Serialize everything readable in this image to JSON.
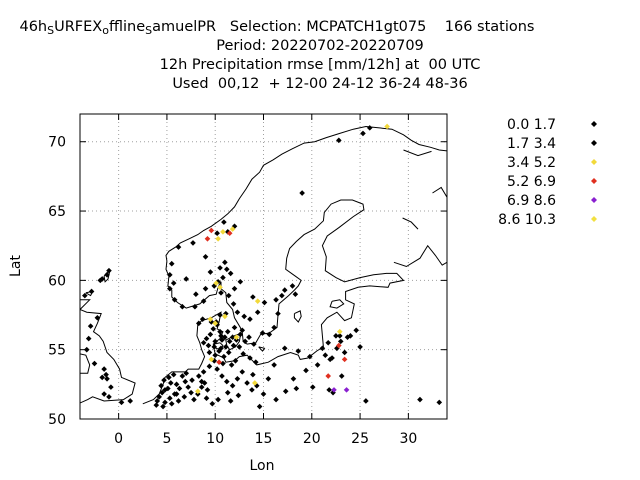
{
  "header": {
    "line1": "46h SURFEX offline SamuelPR   Selection: MCPATCH1gt075    166 stations",
    "line1_parts": {
      "pre": "46h",
      "s1": "S",
      "mid1": "URFEX",
      "s2": "o",
      "mid2": "ffline",
      "s3": "S",
      "mid3": "amuelPR   Selection: MCPATCH1gt075    166 stations"
    },
    "line2": "Period: 20220702-20220709",
    "line3": "12h Precipitation rmse [mm/12h] at  00 UTC",
    "line4": "Used  00,12  + 12-00 24-12 36-24 48-36"
  },
  "chart_data": {
    "type": "scatter",
    "xlabel": "Lon",
    "ylabel": "Lat",
    "xlim": [
      -4,
      34
    ],
    "ylim": [
      50,
      72
    ],
    "xticks": [
      0,
      5,
      10,
      15,
      20,
      25,
      30
    ],
    "yticks": [
      50,
      55,
      60,
      65,
      70
    ],
    "grid": true,
    "legend_position": "right",
    "legend": [
      {
        "label": "0.0 1.7",
        "color": "#000000"
      },
      {
        "label": "1.7 3.4",
        "color": "#000000"
      },
      {
        "label": "3.4 5.2",
        "color": "#f2d93a"
      },
      {
        "label": "5.2 6.9",
        "color": "#e03020"
      },
      {
        "label": "6.9 8.6",
        "color": "#8a20d0"
      },
      {
        "label": "8.6 10.3",
        "color": "#f2e040"
      }
    ],
    "series": [
      {
        "color": "#000000",
        "points": [
          [
            -3.5,
            58.9
          ],
          [
            -2.8,
            59.2
          ],
          [
            -1.7,
            60.1
          ],
          [
            -1.2,
            60.4
          ],
          [
            -1.0,
            60.7
          ],
          [
            -1.9,
            60.0
          ],
          [
            -2.2,
            57.3
          ],
          [
            -2.9,
            56.7
          ],
          [
            -3.1,
            55.8
          ],
          [
            -3.3,
            55.0
          ],
          [
            -2.5,
            54.0
          ],
          [
            -1.5,
            53.6
          ],
          [
            -1.2,
            52.9
          ],
          [
            -0.8,
            52.3
          ],
          [
            -1.0,
            51.6
          ],
          [
            0.3,
            51.2
          ],
          [
            1.2,
            51.3
          ],
          [
            -1.7,
            53.0
          ],
          [
            -1.3,
            53.2
          ],
          [
            -1.5,
            51.8
          ],
          [
            4.0,
            51.3
          ],
          [
            4.2,
            51.6
          ],
          [
            4.5,
            51.9
          ],
          [
            4.8,
            52.1
          ],
          [
            4.4,
            52.4
          ],
          [
            4.7,
            52.8
          ],
          [
            5.1,
            52.2
          ],
          [
            5.4,
            52.6
          ],
          [
            5.2,
            53.0
          ],
          [
            5.7,
            53.2
          ],
          [
            6.0,
            52.5
          ],
          [
            6.3,
            52.2
          ],
          [
            6.6,
            53.1
          ],
          [
            7.0,
            53.3
          ],
          [
            6.9,
            52.7
          ],
          [
            7.2,
            52.3
          ],
          [
            7.5,
            51.9
          ],
          [
            6.8,
            51.6
          ],
          [
            6.2,
            51.3
          ],
          [
            5.8,
            51.8
          ],
          [
            5.3,
            51.5
          ],
          [
            4.8,
            51.2
          ],
          [
            3.9,
            51.0
          ],
          [
            4.6,
            50.9
          ],
          [
            5.5,
            51.1
          ],
          [
            7.8,
            51.4
          ],
          [
            8.2,
            51.8
          ],
          [
            8.6,
            52.3
          ],
          [
            8.9,
            52.6
          ],
          [
            8.3,
            53.1
          ],
          [
            8.8,
            53.4
          ],
          [
            9.4,
            53.8
          ],
          [
            9.9,
            54.2
          ],
          [
            10.2,
            53.6
          ],
          [
            10.7,
            53.1
          ],
          [
            11.2,
            52.7
          ],
          [
            11.8,
            52.4
          ],
          [
            11.3,
            51.9
          ],
          [
            10.3,
            51.4
          ],
          [
            9.7,
            51.1
          ],
          [
            9.1,
            51.5
          ],
          [
            12.3,
            52.9
          ],
          [
            12.8,
            53.4
          ],
          [
            13.3,
            52.6
          ],
          [
            13.8,
            52.1
          ],
          [
            14.3,
            52.4
          ],
          [
            13.9,
            53.2
          ],
          [
            12.4,
            51.7
          ],
          [
            11.6,
            51.3
          ],
          [
            8.8,
            55.5
          ],
          [
            9.1,
            55.8
          ],
          [
            9.5,
            56.1
          ],
          [
            9.8,
            56.5
          ],
          [
            10.2,
            56.8
          ],
          [
            10.5,
            56.3
          ],
          [
            10.7,
            55.7
          ],
          [
            11.1,
            55.2
          ],
          [
            11.5,
            55.6
          ],
          [
            11.9,
            55.3
          ],
          [
            12.2,
            55.7
          ],
          [
            12.5,
            55.2
          ],
          [
            11.4,
            54.8
          ],
          [
            10.9,
            54.5
          ],
          [
            10.4,
            54.9
          ],
          [
            9.9,
            55.2
          ],
          [
            9.4,
            54.8
          ],
          [
            10.0,
            55.6
          ],
          [
            10.6,
            56.0
          ],
          [
            8.3,
            56.9
          ],
          [
            8.7,
            57.2
          ],
          [
            10.5,
            57.5
          ],
          [
            9.6,
            57.0
          ],
          [
            12.6,
            56.1
          ],
          [
            13.1,
            55.6
          ],
          [
            13.5,
            55.9
          ],
          [
            12.9,
            54.7
          ],
          [
            13.6,
            54.4
          ],
          [
            12.1,
            54.2
          ],
          [
            11.7,
            53.9
          ],
          [
            10.8,
            54.0
          ],
          [
            14.2,
            54.1
          ],
          [
            10.0,
            54.6
          ],
          [
            9.3,
            55.3
          ],
          [
            11.3,
            56.3
          ],
          [
            12.0,
            56.6
          ],
          [
            12.8,
            56.4
          ],
          [
            10.6,
            55.1
          ],
          [
            11.0,
            55.9
          ],
          [
            11.8,
            55.9
          ],
          [
            13.0,
            57.4
          ],
          [
            12.3,
            57.7
          ],
          [
            11.9,
            58.3
          ],
          [
            11.4,
            58.9
          ],
          [
            12.0,
            59.4
          ],
          [
            12.6,
            59.9
          ],
          [
            14.4,
            57.7
          ],
          [
            15.1,
            58.4
          ],
          [
            16.3,
            58.6
          ],
          [
            16.9,
            58.9
          ],
          [
            17.2,
            59.3
          ],
          [
            18.0,
            59.6
          ],
          [
            16.5,
            57.6
          ],
          [
            16.1,
            56.6
          ],
          [
            14.9,
            56.2
          ],
          [
            15.6,
            56.1
          ],
          [
            13.9,
            58.8
          ],
          [
            9.0,
            59.4
          ],
          [
            9.9,
            59.6
          ],
          [
            10.3,
            59.9
          ],
          [
            10.8,
            60.2
          ],
          [
            10.6,
            59.1
          ],
          [
            8.8,
            58.5
          ],
          [
            7.9,
            58.1
          ],
          [
            6.6,
            58.1
          ],
          [
            5.8,
            58.6
          ],
          [
            5.3,
            59.4
          ],
          [
            5.3,
            60.4
          ],
          [
            5.5,
            61.2
          ],
          [
            6.2,
            62.4
          ],
          [
            7.7,
            62.7
          ],
          [
            9.0,
            61.7
          ],
          [
            11.2,
            60.8
          ],
          [
            11.0,
            61.3
          ],
          [
            11.6,
            60.5
          ],
          [
            10.5,
            60.9
          ],
          [
            9.5,
            60.6
          ],
          [
            7.0,
            60.1
          ],
          [
            5.7,
            59.8
          ],
          [
            8.0,
            59.0
          ],
          [
            10.2,
            63.4
          ],
          [
            11.3,
            63.5
          ],
          [
            12.0,
            63.9
          ],
          [
            10.9,
            64.2
          ],
          [
            19.0,
            66.3
          ],
          [
            17.2,
            55.1
          ],
          [
            18.6,
            54.9
          ],
          [
            19.8,
            54.5
          ],
          [
            21.1,
            55.1
          ],
          [
            21.9,
            54.3
          ],
          [
            20.6,
            53.9
          ],
          [
            19.4,
            53.5
          ],
          [
            18.1,
            52.9
          ],
          [
            17.3,
            52.0
          ],
          [
            18.4,
            52.2
          ],
          [
            16.3,
            51.4
          ],
          [
            15.5,
            52.9
          ],
          [
            15.0,
            51.8
          ],
          [
            14.6,
            50.9
          ],
          [
            22.1,
            54.4
          ],
          [
            22.6,
            55.1
          ],
          [
            23.0,
            55.6
          ],
          [
            23.4,
            54.8
          ],
          [
            24.0,
            56.0
          ],
          [
            24.6,
            56.4
          ],
          [
            25.0,
            55.2
          ],
          [
            21.8,
            52.1
          ],
          [
            22.5,
            56.0
          ],
          [
            20.1,
            52.3
          ],
          [
            23.1,
            53.1
          ],
          [
            22.2,
            51.9
          ],
          [
            21.4,
            54.6
          ],
          [
            21.7,
            55.5
          ],
          [
            22.9,
            56.0
          ],
          [
            23.7,
            55.9
          ],
          [
            25.6,
            51.3
          ],
          [
            31.2,
            51.4
          ],
          [
            33.2,
            51.2
          ],
          [
            26.0,
            71.0
          ],
          [
            25.3,
            70.6
          ],
          [
            22.8,
            70.1
          ],
          [
            8.6,
            52.7
          ],
          [
            9.2,
            52.1
          ],
          [
            7.6,
            52.8
          ],
          [
            6.0,
            51.8
          ],
          [
            16.1,
            53.9
          ],
          [
            14.0,
            55.4
          ],
          [
            13.6,
            57.2
          ],
          [
            10.1,
            57.0
          ],
          [
            11.1,
            57.6
          ],
          [
            18.3,
            59.0
          ]
        ]
      },
      {
        "color": "#f2d93a",
        "points": [
          [
            10.8,
            63.5
          ],
          [
            11.8,
            63.7
          ],
          [
            10.3,
            63.0
          ],
          [
            11.0,
            57.4
          ],
          [
            9.5,
            57.2
          ],
          [
            10.0,
            56.9
          ],
          [
            10.5,
            59.5
          ],
          [
            10.1,
            59.8
          ],
          [
            14.4,
            58.5
          ],
          [
            14.1,
            52.6
          ],
          [
            22.9,
            56.3
          ],
          [
            9.6,
            54.3
          ],
          [
            8.2,
            52.0
          ],
          [
            27.8,
            71.1
          ],
          [
            12.2,
            55.9
          ]
        ]
      },
      {
        "color": "#e03020",
        "points": [
          [
            9.2,
            63.0
          ],
          [
            9.6,
            63.6
          ],
          [
            11.5,
            63.4
          ],
          [
            10.4,
            54.1
          ],
          [
            22.8,
            55.3
          ],
          [
            23.4,
            54.3
          ],
          [
            21.7,
            53.1
          ]
        ]
      },
      {
        "color": "#8a20d0",
        "points": [
          [
            22.3,
            52.1
          ],
          [
            23.6,
            52.1
          ]
        ]
      }
    ]
  }
}
